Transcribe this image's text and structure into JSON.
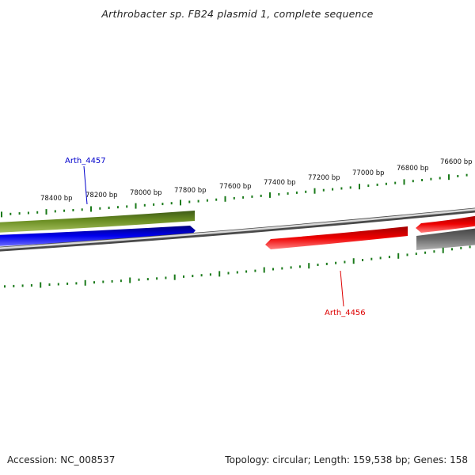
{
  "title": "Arthrobacter sp. FB24 plasmid 1, complete sequence",
  "footer": {
    "accession": "Accession: NC_008537",
    "summary": "Topology: circular; Length: 159,538 bp; Genes: 158"
  },
  "tick_labels": [
    "78400 bp",
    "78200 bp",
    "78000 bp",
    "77800 bp",
    "77600 bp",
    "77400 bp",
    "77200 bp",
    "77000 bp",
    "76800 bp",
    "76600 bp"
  ],
  "gene_labels": {
    "upper": "Arth_4457",
    "lower": "Arth_4456"
  },
  "colors": {
    "tick": "#1a7a1a",
    "backbone": "#8a8a8a",
    "green_feature": "#6b8e23",
    "blue_feature": "#0000ee",
    "red_feature": "#ee0000",
    "grey_feature": "#6e6e6e",
    "upper_label": "#0000cc",
    "lower_label": "#dd0000"
  }
}
